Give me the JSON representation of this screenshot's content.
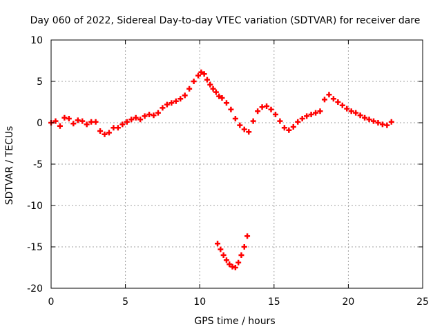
{
  "chart_data": {
    "type": "scatter",
    "title": "Day 060 of 2022, Sidereal Day-to-day VTEC variation (SDTVAR) for receiver dare",
    "xlabel": "GPS time / hours",
    "ylabel": "SDTVAR / TECUs",
    "xlim": [
      0,
      25
    ],
    "ylim": [
      -20,
      10
    ],
    "xticks": [
      0,
      5,
      10,
      15,
      20,
      25
    ],
    "yticks": [
      -20,
      -15,
      -10,
      -5,
      0,
      5,
      10
    ],
    "grid": true,
    "legend": "none",
    "series": [
      {
        "name": "SDTVAR",
        "color": "#ff0000",
        "points": [
          [
            0.0,
            0.0
          ],
          [
            0.3,
            0.2
          ],
          [
            0.6,
            -0.4
          ],
          [
            0.9,
            0.6
          ],
          [
            1.2,
            0.5
          ],
          [
            1.5,
            -0.1
          ],
          [
            1.8,
            0.3
          ],
          [
            2.1,
            0.2
          ],
          [
            2.4,
            -0.2
          ],
          [
            2.7,
            0.1
          ],
          [
            3.0,
            0.1
          ],
          [
            3.3,
            -1.0
          ],
          [
            3.6,
            -1.4
          ],
          [
            3.9,
            -1.2
          ],
          [
            4.2,
            -0.6
          ],
          [
            4.5,
            -0.6
          ],
          [
            4.8,
            -0.2
          ],
          [
            5.1,
            0.1
          ],
          [
            5.4,
            0.4
          ],
          [
            5.7,
            0.6
          ],
          [
            6.0,
            0.4
          ],
          [
            6.3,
            0.8
          ],
          [
            6.6,
            1.0
          ],
          [
            6.9,
            0.9
          ],
          [
            7.2,
            1.2
          ],
          [
            7.5,
            1.8
          ],
          [
            7.8,
            2.2
          ],
          [
            8.1,
            2.4
          ],
          [
            8.4,
            2.6
          ],
          [
            8.7,
            2.9
          ],
          [
            9.0,
            3.3
          ],
          [
            9.3,
            4.1
          ],
          [
            9.6,
            5.0
          ],
          [
            9.9,
            5.7
          ],
          [
            10.1,
            6.1
          ],
          [
            10.3,
            5.9
          ],
          [
            10.5,
            5.2
          ],
          [
            10.7,
            4.6
          ],
          [
            10.9,
            4.1
          ],
          [
            11.1,
            3.7
          ],
          [
            11.3,
            3.2
          ],
          [
            11.5,
            3.0
          ],
          [
            11.8,
            2.4
          ],
          [
            12.1,
            1.6
          ],
          [
            12.4,
            0.5
          ],
          [
            12.7,
            -0.3
          ],
          [
            13.0,
            -0.8
          ],
          [
            13.3,
            -1.1
          ],
          [
            13.6,
            0.2
          ],
          [
            13.9,
            1.4
          ],
          [
            14.2,
            1.9
          ],
          [
            14.5,
            2.0
          ],
          [
            14.8,
            1.6
          ],
          [
            15.1,
            1.0
          ],
          [
            15.4,
            0.2
          ],
          [
            15.7,
            -0.6
          ],
          [
            16.0,
            -0.9
          ],
          [
            16.3,
            -0.5
          ],
          [
            16.6,
            0.1
          ],
          [
            16.9,
            0.5
          ],
          [
            17.2,
            0.8
          ],
          [
            17.5,
            1.0
          ],
          [
            17.8,
            1.2
          ],
          [
            18.1,
            1.4
          ],
          [
            18.4,
            2.8
          ],
          [
            18.7,
            3.4
          ],
          [
            19.0,
            2.9
          ],
          [
            19.3,
            2.5
          ],
          [
            19.6,
            2.1
          ],
          [
            19.9,
            1.7
          ],
          [
            20.2,
            1.4
          ],
          [
            20.5,
            1.2
          ],
          [
            20.8,
            0.9
          ],
          [
            21.1,
            0.6
          ],
          [
            21.4,
            0.4
          ],
          [
            21.7,
            0.2
          ],
          [
            22.0,
            0.0
          ],
          [
            22.3,
            -0.2
          ],
          [
            22.6,
            -0.3
          ],
          [
            22.9,
            0.1
          ],
          [
            11.2,
            -14.6
          ],
          [
            11.4,
            -15.3
          ],
          [
            11.6,
            -16.0
          ],
          [
            11.8,
            -16.6
          ],
          [
            12.0,
            -17.1
          ],
          [
            12.2,
            -17.4
          ],
          [
            12.4,
            -17.5
          ],
          [
            12.6,
            -16.9
          ],
          [
            12.8,
            -16.0
          ],
          [
            13.0,
            -15.0
          ],
          [
            13.2,
            -13.7
          ]
        ]
      }
    ]
  }
}
